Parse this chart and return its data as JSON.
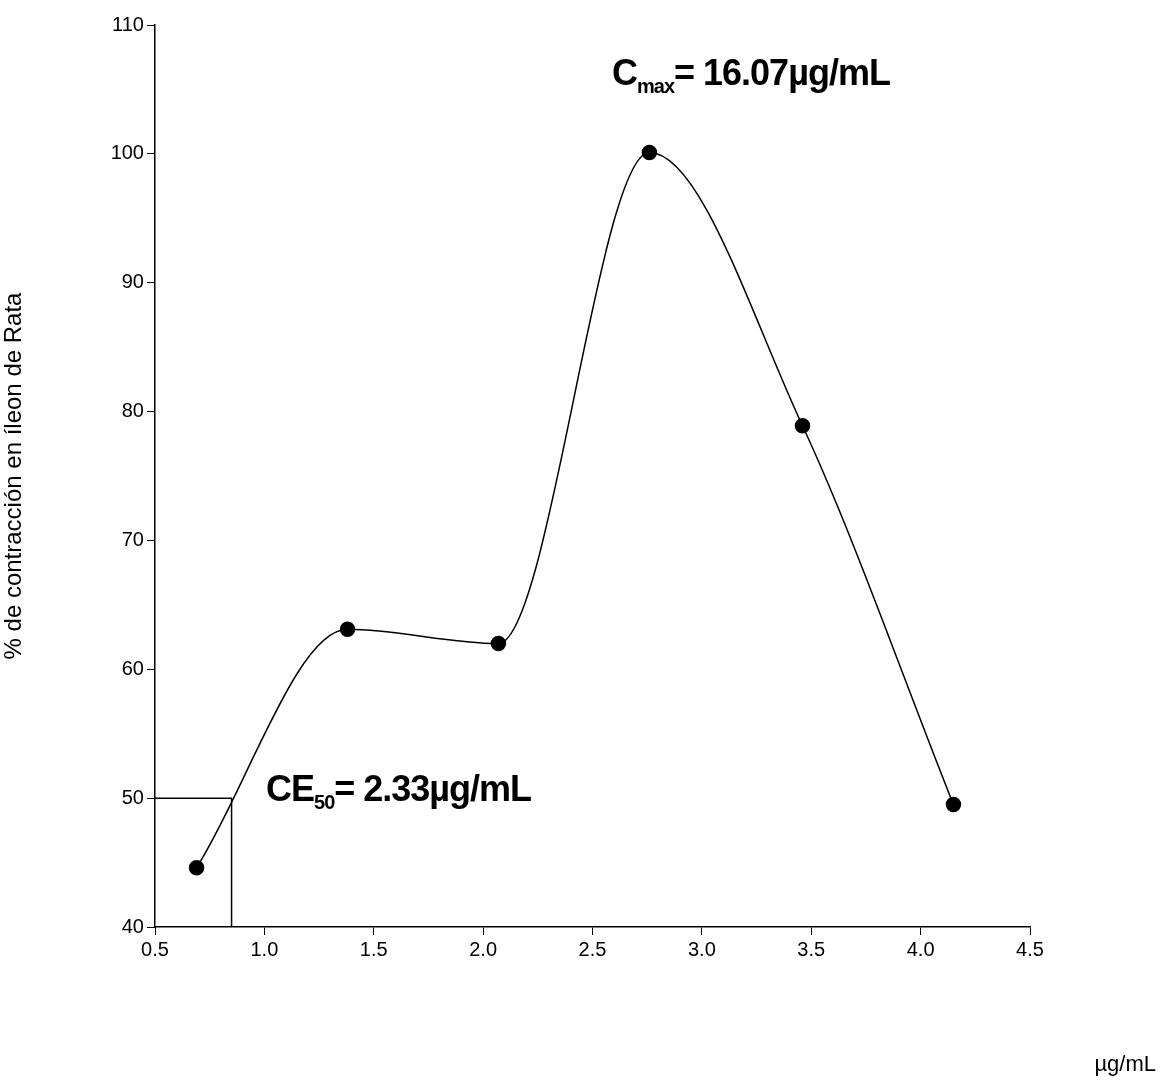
{
  "chart_data": {
    "type": "line",
    "xlabel": "µg/mL",
    "ylabel": "% de contracción en íleon de Rata",
    "annotations": [
      "C$_{max}$= 16.07µg/mL",
      "CE$_{50}$= 2.33µg/mL"
    ],
    "series": [
      {
        "color": "#000000",
        "marker": "circle",
        "x": [
          0.69,
          1.38,
          2.07,
          2.76,
          3.46,
          4.15
        ],
        "values": [
          44.6,
          63.1,
          62.0,
          100.1,
          78.9,
          49.5
        ]
      },
      {
        "color": "#000000",
        "marker": "none",
        "x": [
          0.5,
          0.85,
          0.85
        ],
        "values": [
          50,
          50,
          40
        ]
      }
    ],
    "xlim": [
      0.5,
      4.5
    ],
    "xticks": [
      0.5,
      {
        "value": 1,
        "label": "1.0"
      },
      1.5,
      {
        "value": 2,
        "label": "2.0"
      },
      2.5,
      {
        "value": 3,
        "label": "3.0"
      },
      3.5,
      {
        "value": 4,
        "label": "4.0"
      },
      4.5
    ],
    "ylim": [
      40,
      110
    ],
    "yticks": [
      40,
      50,
      60,
      70,
      80,
      90,
      100,
      110
    ],
    "grid": false,
    "legend": false
  }
}
